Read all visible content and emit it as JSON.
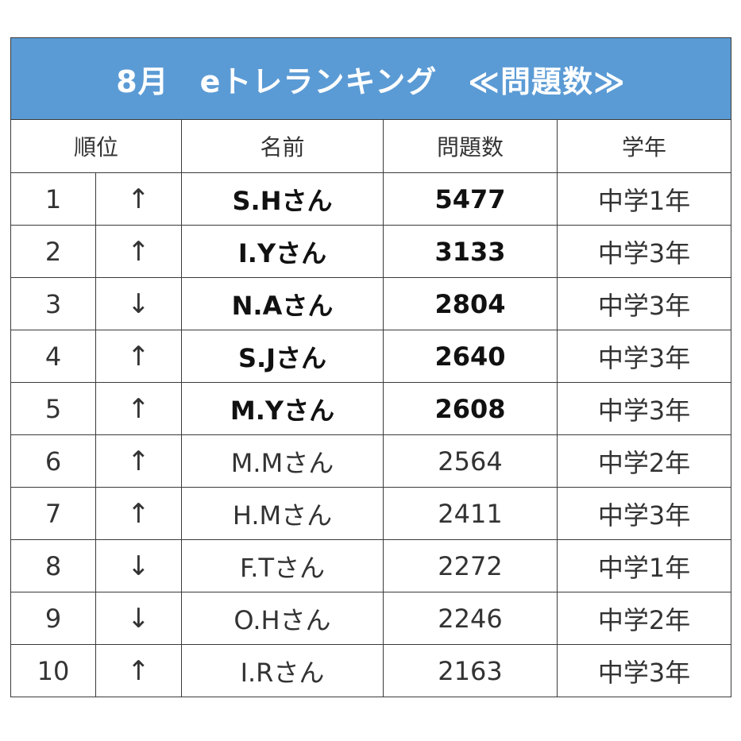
{
  "title": "8月　eトレランキング　≪問題数≫",
  "headers": {
    "rank": "順位",
    "name": "名前",
    "count": "問題数",
    "grade": "学年"
  },
  "rows": [
    {
      "rank": "1",
      "arrow": "↑",
      "name": "S.Hさん",
      "count": "5477",
      "grade": "中学1年",
      "bold": true
    },
    {
      "rank": "2",
      "arrow": "↑",
      "name": "I.Yさん",
      "count": "3133",
      "grade": "中学3年",
      "bold": true
    },
    {
      "rank": "3",
      "arrow": "↓",
      "name": "N.Aさん",
      "count": "2804",
      "grade": "中学3年",
      "bold": true
    },
    {
      "rank": "4",
      "arrow": "↑",
      "name": "S.Jさん",
      "count": "2640",
      "grade": "中学3年",
      "bold": true
    },
    {
      "rank": "5",
      "arrow": "↑",
      "name": "M.Yさん",
      "count": "2608",
      "grade": "中学3年",
      "bold": true
    },
    {
      "rank": "6",
      "arrow": "↑",
      "name": "M.Mさん",
      "count": "2564",
      "grade": "中学2年",
      "bold": false
    },
    {
      "rank": "7",
      "arrow": "↑",
      "name": "H.Mさん",
      "count": "2411",
      "grade": "中学3年",
      "bold": false
    },
    {
      "rank": "8",
      "arrow": "↓",
      "name": "F.Tさん",
      "count": "2272",
      "grade": "中学1年",
      "bold": false
    },
    {
      "rank": "9",
      "arrow": "↓",
      "name": "O.Hさん",
      "count": "2246",
      "grade": "中学2年",
      "bold": false
    },
    {
      "rank": "10",
      "arrow": "↑",
      "name": "I.Rさん",
      "count": "2163",
      "grade": "中学3年",
      "bold": false
    }
  ],
  "colors": {
    "header_background": "#5b9bd5",
    "header_text": "#ffffff"
  }
}
